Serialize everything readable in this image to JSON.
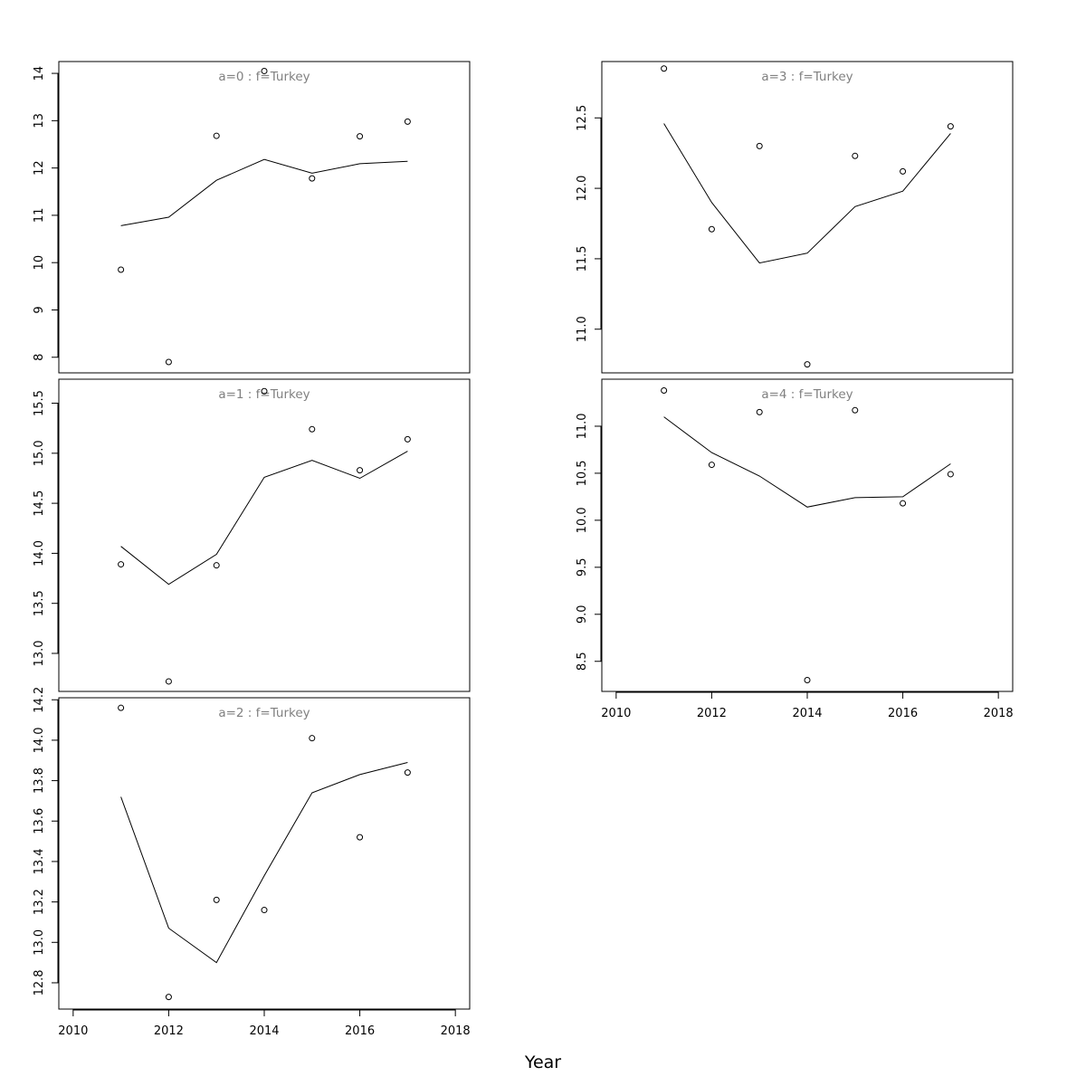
{
  "chart_data": [
    {
      "type": "scatter",
      "title": "a=0 : f=Turkey",
      "xlabel": "Year",
      "x": [
        2011,
        2012,
        2013,
        2014,
        2015,
        2016,
        2017
      ],
      "observed": [
        9.85,
        7.9,
        12.68,
        14.05,
        11.78,
        12.67,
        12.98
      ],
      "fitted": [
        10.78,
        10.96,
        11.74,
        12.18,
        11.89,
        12.09,
        12.14
      ],
      "xlim": [
        2009.7,
        2018.3
      ],
      "ylim": [
        7.67,
        14.25
      ],
      "yticks": [
        "8",
        "9",
        "10",
        "11",
        "12",
        "13",
        "14"
      ],
      "xticks": [],
      "grid": false
    },
    {
      "type": "scatter",
      "title": "a=1 : f=Turkey",
      "xlabel": "Year",
      "x": [
        2011,
        2012,
        2013,
        2014,
        2015,
        2016,
        2017
      ],
      "observed": [
        13.89,
        12.72,
        13.88,
        15.62,
        15.24,
        14.83,
        15.14
      ],
      "fitted": [
        14.07,
        13.69,
        13.99,
        14.76,
        14.93,
        14.75,
        15.02
      ],
      "xlim": [
        2009.7,
        2018.3
      ],
      "ylim": [
        12.62,
        15.74
      ],
      "yticks": [
        "13.0",
        "13.5",
        "14.0",
        "14.5",
        "15.0",
        "15.5"
      ],
      "xticks": [],
      "grid": false
    },
    {
      "type": "scatter",
      "title": "a=2 : f=Turkey",
      "xlabel": "Year",
      "x": [
        2011,
        2012,
        2013,
        2014,
        2015,
        2016,
        2017
      ],
      "observed": [
        14.16,
        12.73,
        13.21,
        13.16,
        14.01,
        13.52,
        13.84
      ],
      "fitted": [
        13.72,
        13.07,
        12.9,
        13.33,
        13.74,
        13.83,
        13.89
      ],
      "xlim": [
        2009.7,
        2018.3
      ],
      "ylim": [
        12.67,
        14.21
      ],
      "yticks": [
        "12.8",
        "13.0",
        "13.2",
        "13.4",
        "13.6",
        "13.8",
        "14.0",
        "14.2"
      ],
      "xticks": [
        "2010",
        "2012",
        "2014",
        "2016",
        "2018"
      ],
      "grid": false
    },
    {
      "type": "scatter",
      "title": "a=3 : f=Turkey",
      "xlabel": "Year",
      "x": [
        2011,
        2012,
        2013,
        2014,
        2015,
        2016,
        2017
      ],
      "observed": [
        12.85,
        11.71,
        12.3,
        10.75,
        12.23,
        12.12,
        12.44
      ],
      "fitted": [
        12.46,
        11.9,
        11.47,
        11.54,
        11.87,
        11.98,
        12.39
      ],
      "xlim": [
        2009.7,
        2018.3
      ],
      "ylim": [
        10.69,
        12.9
      ],
      "yticks": [
        "11.0",
        "11.5",
        "12.0",
        "12.5"
      ],
      "xticks": [],
      "grid": false
    },
    {
      "type": "scatter",
      "title": "a=4 : f=Turkey",
      "xlabel": "Year",
      "x": [
        2011,
        2012,
        2013,
        2014,
        2015,
        2016,
        2017
      ],
      "observed": [
        11.38,
        10.59,
        11.15,
        8.3,
        11.17,
        10.18,
        10.49
      ],
      "fitted": [
        11.1,
        10.72,
        10.47,
        10.14,
        10.24,
        10.25,
        10.6
      ],
      "xlim": [
        2009.7,
        2018.3
      ],
      "ylim": [
        8.18,
        11.5
      ],
      "yticks": [
        "8.5",
        "9.0",
        "9.5",
        "10.0",
        "10.5",
        "11.0"
      ],
      "xticks": [
        "2010",
        "2012",
        "2014",
        "2016",
        "2018"
      ],
      "grid": false
    }
  ]
}
